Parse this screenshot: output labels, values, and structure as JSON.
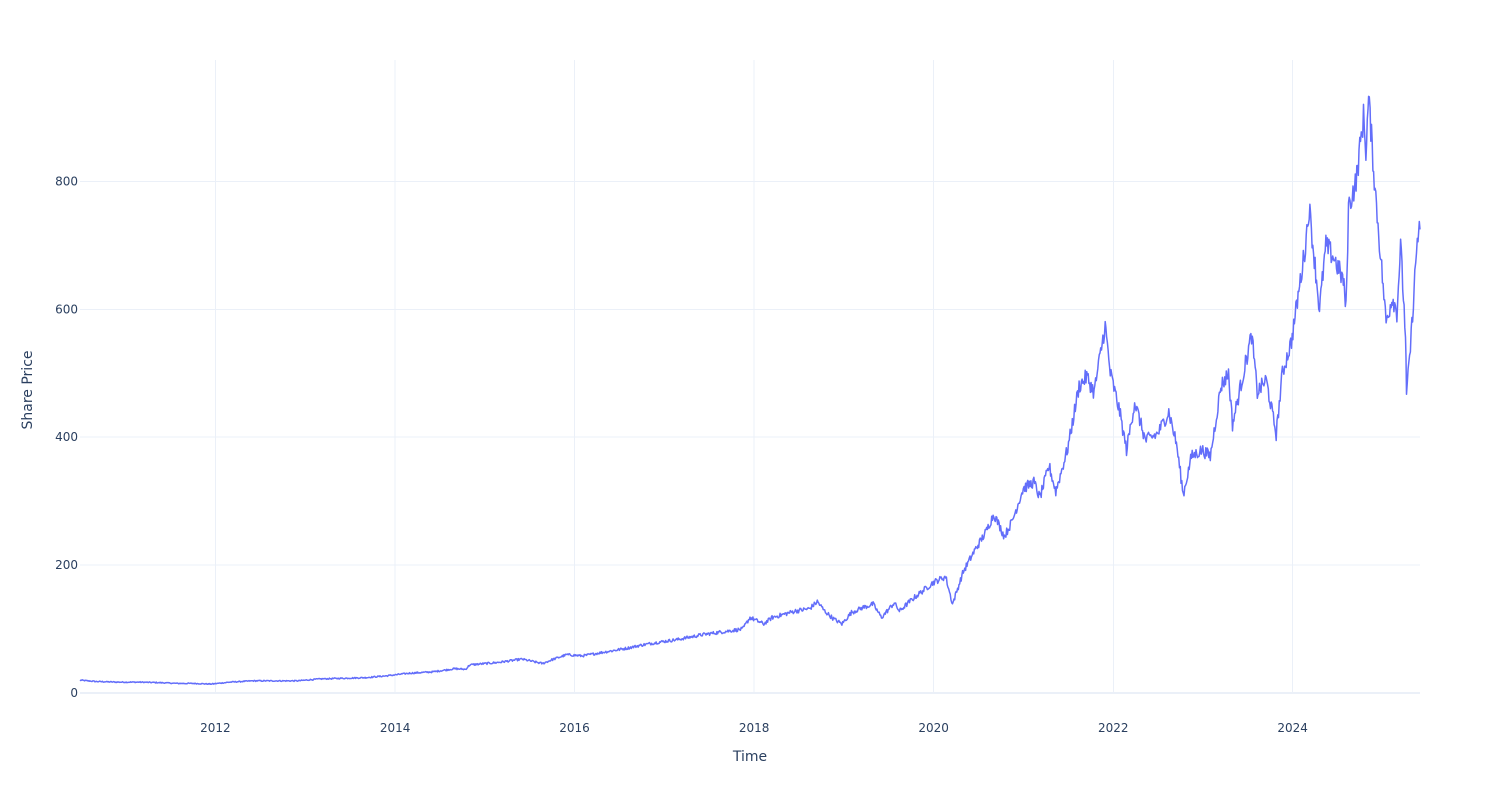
{
  "chart_data": {
    "type": "line",
    "title": "",
    "xlabel": "Time",
    "ylabel": "Share Price",
    "xlim": [
      "2010-06-29",
      "2025-06-02"
    ],
    "ylim": [
      0,
      990
    ],
    "x_ticks": [
      "2012-01-01",
      "2014-01-01",
      "2016-01-01",
      "2018-01-01",
      "2020-01-01",
      "2022-01-01",
      "2024-01-01"
    ],
    "x_tick_labels": [
      "2012",
      "2014",
      "2016",
      "2018",
      "2020",
      "2022",
      "2024"
    ],
    "y_ticks": [
      0,
      200,
      400,
      600,
      800
    ],
    "y_tick_labels": [
      "0",
      "200",
      "400",
      "600",
      "800"
    ],
    "grid": true,
    "legend": "none",
    "colors": {
      "line": "#636efa",
      "grid": "#ebf0f8",
      "text": "#2a3f5f"
    },
    "series": [
      {
        "x": [
          "2010-06-29",
          "2010-09-01",
          "2010-12-01",
          "2011-03-01",
          "2011-06-01",
          "2011-08-01",
          "2011-10-01",
          "2011-12-15",
          "2012-03-01",
          "2012-06-01",
          "2012-09-01",
          "2012-12-01",
          "2013-03-01",
          "2013-06-01",
          "2013-09-01",
          "2013-12-01",
          "2014-03-01",
          "2014-06-01",
          "2014-09-01",
          "2014-10-15",
          "2014-11-01",
          "2015-01-01",
          "2015-03-01",
          "2015-06-01",
          "2015-08-24",
          "2015-10-01",
          "2015-12-01",
          "2016-02-01",
          "2016-04-01",
          "2016-06-01",
          "2016-08-01",
          "2016-10-01",
          "2016-12-01",
          "2017-03-01",
          "2017-06-01",
          "2017-09-01",
          "2017-11-15",
          "2017-12-15",
          "2018-02-09",
          "2018-03-15",
          "2018-05-01",
          "2018-06-15",
          "2018-08-15",
          "2018-09-15",
          "2018-10-15",
          "2018-11-20",
          "2018-12-24",
          "2019-02-01",
          "2019-03-15",
          "2019-04-30",
          "2019-06-03",
          "2019-07-25",
          "2019-08-15",
          "2019-10-01",
          "2019-12-31",
          "2020-02-19",
          "2020-03-18",
          "2020-05-01",
          "2020-06-15",
          "2020-08-01",
          "2020-09-02",
          "2020-10-15",
          "2020-11-15",
          "2020-12-31",
          "2021-02-12",
          "2021-03-08",
          "2021-04-15",
          "2021-05-12",
          "2021-06-30",
          "2021-08-15",
          "2021-09-15",
          "2021-10-15",
          "2021-11-29",
          "2021-12-20",
          "2022-01-27",
          "2022-02-24",
          "2022-03-29",
          "2022-05-12",
          "2022-06-30",
          "2022-08-15",
          "2022-09-15",
          "2022-10-13",
          "2022-11-15",
          "2022-12-28",
          "2023-01-31",
          "2023-03-15",
          "2023-04-15",
          "2023-05-01",
          "2023-06-20",
          "2023-07-18",
          "2023-08-10",
          "2023-09-15",
          "2023-10-26",
          "2023-11-20",
          "2023-12-27",
          "2024-02-22",
          "2024-03-08",
          "2024-04-19",
          "2024-05-15",
          "2024-06-18",
          "2024-07-25",
          "2024-08-05",
          "2024-08-15",
          "2024-09-15",
          "2024-10-15",
          "2024-10-25",
          "2024-11-05",
          "2024-12-01",
          "2025-01-15",
          "2025-02-10",
          "2025-02-28",
          "2025-03-15",
          "2025-04-04",
          "2025-04-08",
          "2025-04-24",
          "2025-05-12",
          "2025-05-22",
          "2025-06-02"
        ],
        "y": [
          20,
          18,
          17,
          17,
          16,
          15,
          15,
          14,
          17,
          19,
          19,
          19,
          22,
          23,
          24,
          27,
          31,
          33,
          38,
          37,
          44,
          46,
          48,
          53,
          46,
          52,
          60,
          58,
          62,
          66,
          70,
          75,
          79,
          84,
          91,
          96,
          100,
          118,
          108,
          118,
          123,
          128,
          132,
          143,
          128,
          116,
          108,
          126,
          133,
          139,
          118,
          141,
          128,
          145,
          173,
          182,
          139,
          190,
          222,
          252,
          280,
          245,
          268,
          320,
          330,
          305,
          355,
          315,
          383,
          480,
          495,
          470,
          575,
          500,
          440,
          380,
          455,
          395,
          405,
          440,
          390,
          310,
          370,
          380,
          370,
          480,
          500,
          420,
          510,
          560,
          470,
          490,
          405,
          500,
          550,
          700,
          760,
          600,
          700,
          680,
          645,
          600,
          760,
          800,
          900,
          850,
          930,
          790,
          580,
          620,
          595,
          700,
          560,
          465,
          540,
          650,
          710,
          725
        ]
      }
    ]
  }
}
